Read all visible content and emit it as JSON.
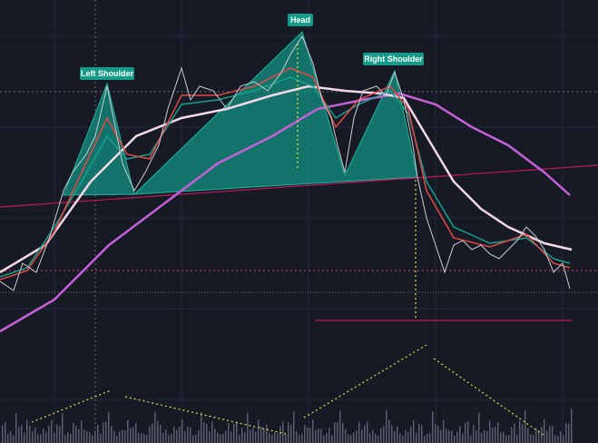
{
  "annotations": {
    "left_shoulder": "Left Shoulder",
    "head": "Head",
    "right_shoulder": "Right Shoulder"
  }
}
